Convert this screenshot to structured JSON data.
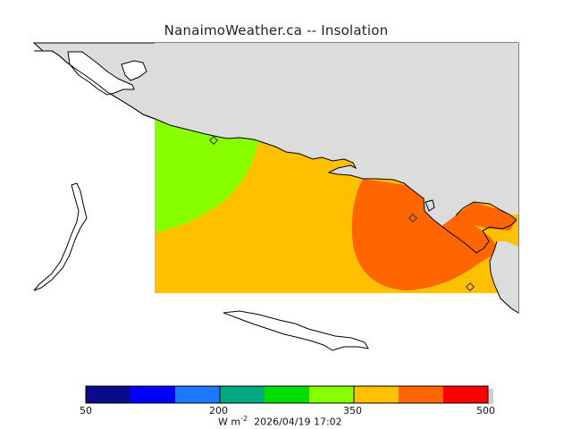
{
  "header": {
    "title": "NanaimoWeather.ca -- Insolation"
  },
  "colorbar": {
    "colors": [
      "#0a0a8c",
      "#0000ff",
      "#1e78ff",
      "#00aa80",
      "#00dd00",
      "#88ff00",
      "#ffc000",
      "#ff6600",
      "#ff0000"
    ],
    "tick_labels": [
      "50",
      "200",
      "350",
      "500"
    ],
    "units_base": "W m",
    "units_exp": "-2",
    "timestamp": "2026/04/19 17:02"
  },
  "map": {
    "land_color": "#dcdcdc",
    "water_color": "#ffffff",
    "coast_color": "#000000",
    "zones": [
      {
        "name": "west",
        "value_range": "300-350",
        "color": "#88ff00"
      },
      {
        "name": "central",
        "value_range": "350-400",
        "color": "#ffc000"
      },
      {
        "name": "east",
        "value_range": "400-450",
        "color": "#ff6600"
      }
    ],
    "stations": 3
  }
}
